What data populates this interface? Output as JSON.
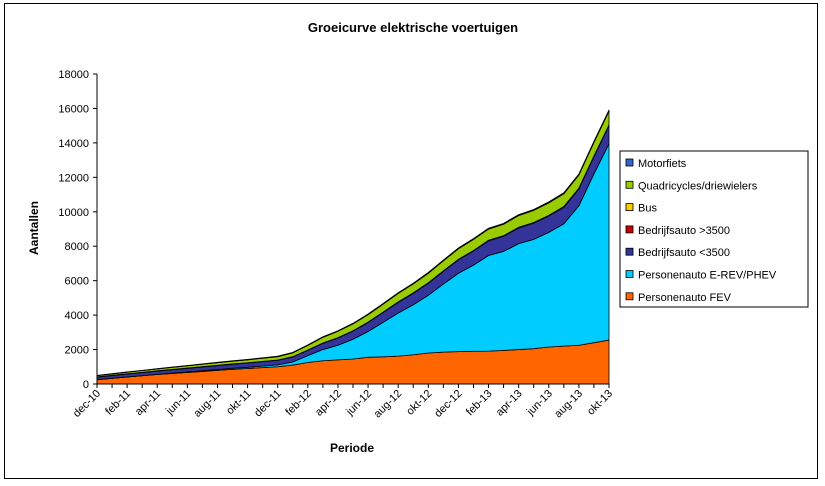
{
  "chart_data": {
    "type": "area",
    "stacked": true,
    "title": "Groeicurve elektrische voertuigen",
    "xlabel": "Periode",
    "ylabel": "Aantallen",
    "ylim": [
      0,
      18000
    ],
    "yticks": [
      0,
      2000,
      4000,
      6000,
      8000,
      10000,
      12000,
      14000,
      16000,
      18000
    ],
    "grid": false,
    "legend_position": "right",
    "x": [
      "dec-10",
      "jan-11",
      "feb-11",
      "mrt-11",
      "apr-11",
      "mei-11",
      "jun-11",
      "jul-11",
      "aug-11",
      "sep-11",
      "okt-11",
      "nov-11",
      "dec-11",
      "jan-12",
      "feb-12",
      "mrt-12",
      "apr-12",
      "mei-12",
      "jun-12",
      "jul-12",
      "aug-12",
      "sep-12",
      "okt-12",
      "nov-12",
      "dec-12",
      "jan-13",
      "feb-13",
      "mrt-13",
      "apr-13",
      "mei-13",
      "jun-13",
      "jul-13",
      "aug-13",
      "sep-13",
      "okt-13"
    ],
    "x_tick_labels": [
      "dec-10",
      "",
      "feb-11",
      "",
      "apr-11",
      "",
      "jun-11",
      "",
      "aug-11",
      "",
      "okt-11",
      "",
      "dec-11",
      "",
      "feb-12",
      "",
      "apr-12",
      "",
      "jun-12",
      "",
      "aug-12",
      "",
      "okt-12",
      "",
      "dec-12",
      "",
      "feb-13",
      "",
      "apr-13",
      "",
      "jun-13",
      "",
      "aug-13",
      "",
      "okt-13"
    ],
    "series": [
      {
        "name": "Personenauto FEV",
        "color": "#FF6600",
        "values": [
          250,
          330,
          410,
          480,
          550,
          610,
          670,
          730,
          790,
          850,
          900,
          950,
          1000,
          1100,
          1250,
          1350,
          1400,
          1450,
          1550,
          1580,
          1620,
          1700,
          1800,
          1850,
          1880,
          1900,
          1910,
          1950,
          2000,
          2050,
          2150,
          2200,
          2250,
          2400,
          2550
        ]
      },
      {
        "name": "Personenauto E-REV/PHEV",
        "color": "#00CCFF",
        "values": [
          0,
          0,
          0,
          0,
          10,
          20,
          30,
          40,
          50,
          60,
          70,
          90,
          110,
          180,
          400,
          650,
          850,
          1150,
          1500,
          2000,
          2500,
          2900,
          3350,
          3950,
          4550,
          5000,
          5550,
          5750,
          6150,
          6350,
          6650,
          7100,
          8100,
          9800,
          11400
        ]
      },
      {
        "name": "Bedrijfsauto <3500",
        "color": "#333399",
        "values": [
          150,
          160,
          170,
          180,
          190,
          200,
          210,
          220,
          230,
          240,
          250,
          260,
          270,
          290,
          310,
          360,
          420,
          470,
          520,
          570,
          620,
          660,
          700,
          740,
          780,
          820,
          850,
          880,
          910,
          940,
          950,
          960,
          980,
          1000,
          1050
        ]
      },
      {
        "name": "Bedrijfsauto >3500",
        "color": "#CC0000",
        "values": [
          10,
          10,
          10,
          10,
          10,
          10,
          10,
          10,
          10,
          10,
          10,
          10,
          10,
          10,
          10,
          15,
          15,
          15,
          15,
          15,
          20,
          20,
          20,
          20,
          20,
          25,
          25,
          25,
          25,
          25,
          30,
          30,
          30,
          30,
          30
        ]
      },
      {
        "name": "Bus",
        "color": "#FFCC00",
        "values": [
          5,
          5,
          5,
          5,
          5,
          5,
          5,
          5,
          5,
          5,
          5,
          5,
          5,
          5,
          5,
          5,
          5,
          5,
          10,
          10,
          10,
          10,
          10,
          10,
          10,
          10,
          10,
          10,
          15,
          15,
          15,
          15,
          15,
          15,
          15
        ]
      },
      {
        "name": "Quadricycles/driewielers",
        "color": "#99CC00",
        "values": [
          70,
          80,
          90,
          100,
          110,
          120,
          130,
          140,
          150,
          160,
          170,
          180,
          190,
          220,
          270,
          330,
          370,
          400,
          430,
          460,
          490,
          520,
          550,
          580,
          610,
          640,
          650,
          660,
          680,
          700,
          720,
          740,
          760,
          780,
          800
        ]
      },
      {
        "name": "Motorfiets",
        "color": "#3366CC",
        "values": [
          15,
          15,
          15,
          15,
          20,
          20,
          20,
          20,
          25,
          25,
          25,
          25,
          30,
          30,
          30,
          35,
          35,
          35,
          40,
          40,
          40,
          45,
          45,
          45,
          50,
          50,
          50,
          55,
          55,
          55,
          60,
          60,
          60,
          65,
          70
        ]
      }
    ]
  }
}
